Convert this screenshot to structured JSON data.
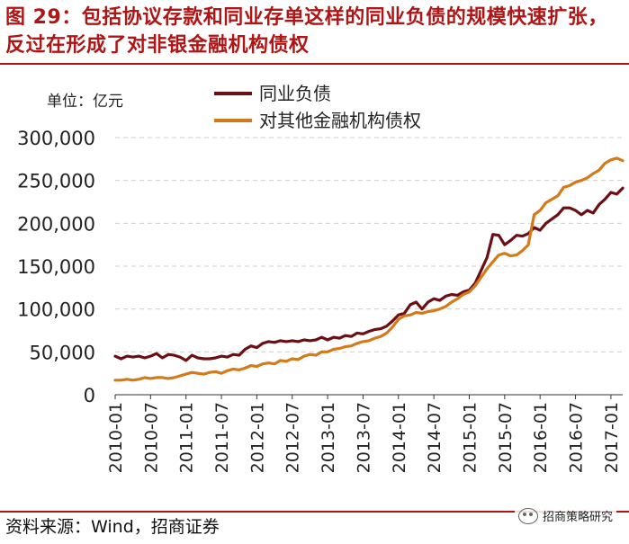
{
  "header": {
    "title": "图 29：包括协议存款和同业存单这样的同业负债的规模快速扩张，反过在形成了对非银金融机构债权"
  },
  "footer": {
    "source": "资料来源：Wind，招商证券",
    "watermark": "招商策略研究",
    "watermark_icon": "wechat-icon"
  },
  "chart_data": {
    "type": "line",
    "unit_label": "单位：亿元",
    "ylim": [
      0,
      300000
    ],
    "yticks": [
      "300,000",
      "250,000",
      "200,000",
      "150,000",
      "100,000",
      "50,000",
      "0"
    ],
    "ytick_values": [
      300000,
      250000,
      200000,
      150000,
      100000,
      50000,
      0
    ],
    "xticks": [
      "2010-01",
      "2010-07",
      "2011-01",
      "2011-07",
      "2012-01",
      "2012-07",
      "2013-01",
      "2013-07",
      "2014-01",
      "2014-07",
      "2015-01",
      "2015-07",
      "2016-01",
      "2016-07",
      "2017-01"
    ],
    "grid": true,
    "legend_position": "top-left",
    "series": [
      {
        "name": "同业负债",
        "color": "#6b0f14",
        "values": [
          45000,
          42000,
          45000,
          44000,
          45000,
          43000,
          45000,
          48000,
          43000,
          47000,
          46000,
          44000,
          40000,
          46000,
          43000,
          42000,
          42000,
          43000,
          45000,
          44000,
          47000,
          46000,
          53000,
          57000,
          55000,
          60000,
          62000,
          61000,
          63000,
          62000,
          63000,
          62000,
          64000,
          63000,
          64000,
          67000,
          64000,
          67000,
          66000,
          69000,
          68000,
          72000,
          71000,
          74000,
          76000,
          77000,
          80000,
          86000,
          93000,
          95000,
          105000,
          108000,
          100000,
          108000,
          112000,
          110000,
          115000,
          117000,
          116000,
          120000,
          122000,
          130000,
          145000,
          160000,
          187000,
          186000,
          175000,
          180000,
          186000,
          185000,
          188000,
          195000,
          192000,
          200000,
          205000,
          210000,
          218000,
          218000,
          215000,
          210000,
          215000,
          212000,
          222000,
          228000,
          236000,
          234000,
          241000
        ]
      },
      {
        "name": "对其他金融机构债权",
        "color": "#d47a1a",
        "values": [
          17000,
          17000,
          18000,
          17000,
          18000,
          20000,
          19000,
          20000,
          20000,
          19000,
          20000,
          22000,
          24000,
          26000,
          25000,
          24000,
          26000,
          27000,
          25000,
          28000,
          30000,
          29000,
          31000,
          34000,
          33000,
          36000,
          37000,
          36000,
          40000,
          39000,
          42000,
          41000,
          45000,
          47000,
          46000,
          50000,
          50000,
          53000,
          54000,
          56000,
          57000,
          60000,
          62000,
          63000,
          66000,
          68000,
          72000,
          79000,
          88000,
          92000,
          93000,
          96000,
          95000,
          97000,
          98000,
          100000,
          103000,
          108000,
          112000,
          117000,
          120000,
          127000,
          137000,
          147000,
          155000,
          163000,
          165000,
          162000,
          163000,
          168000,
          175000,
          210000,
          215000,
          224000,
          228000,
          232000,
          242000,
          244000,
          248000,
          250000,
          253000,
          258000,
          262000,
          270000,
          274000,
          276000,
          273000
        ]
      }
    ]
  }
}
